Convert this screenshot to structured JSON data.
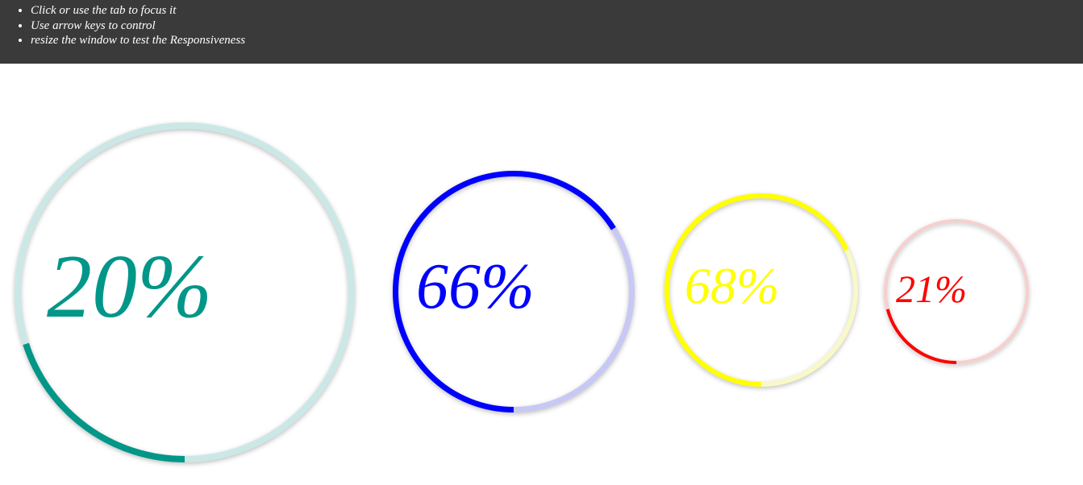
{
  "instructions": {
    "items": [
      "Click or use the tab to focus it",
      "Use arrow keys to control",
      "resize the window to test the Responsiveness"
    ]
  },
  "progress_circles": [
    {
      "label": "20%",
      "value": 20,
      "color": "#009688",
      "track_color": "#cce8e6"
    },
    {
      "label": "66%",
      "value": 66,
      "color": "#0000ff",
      "track_color": "#c8c8f5"
    },
    {
      "label": "68%",
      "value": 68,
      "color": "#ffff00",
      "track_color": "#f9f9c8"
    },
    {
      "label": "21%",
      "value": 21,
      "color": "#ff0000",
      "track_color": "#f7cfcf"
    }
  ]
}
